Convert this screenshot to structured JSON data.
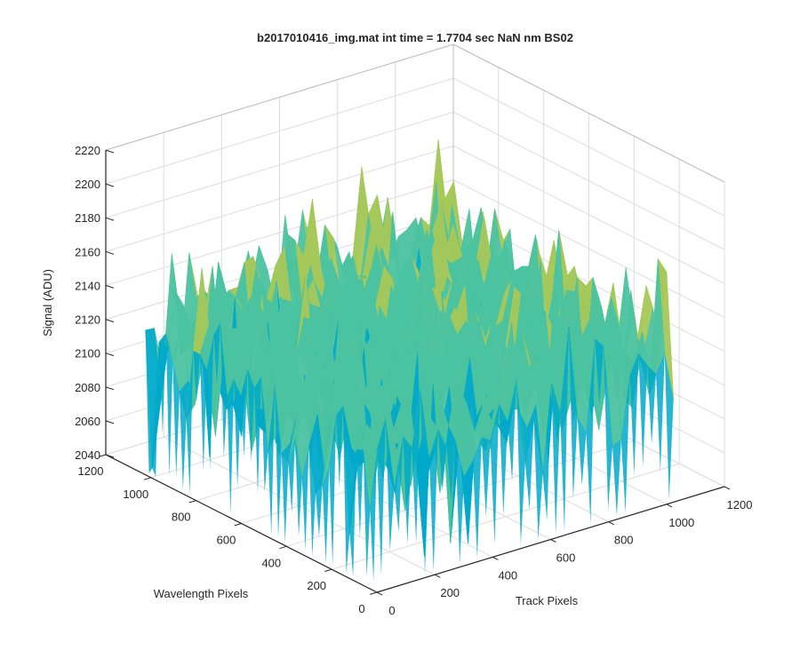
{
  "chart_data": {
    "type": "surface",
    "title": "b2017010416_img.mat int time = 1.7704 sec  NaN nm BS02",
    "xlabel": "Track Pixels",
    "ylabel": "Wavelength Pixels",
    "zlabel": "Signal (ADU)",
    "xlim": [
      0,
      1200
    ],
    "ylim": [
      0,
      1200
    ],
    "zlim": [
      2040,
      2220
    ],
    "x_ticks": [
      0,
      200,
      400,
      600,
      800,
      1000,
      1200
    ],
    "y_ticks": [
      0,
      200,
      400,
      600,
      800,
      1000,
      1200
    ],
    "z_ticks": [
      2040,
      2060,
      2080,
      2100,
      2120,
      2140,
      2160,
      2180,
      2200,
      2220
    ],
    "surface_extent": {
      "x": [
        0,
        1024
      ],
      "y": [
        0,
        1024
      ]
    },
    "signal_mean_approx": 2125,
    "signal_range_approx": [
      2050,
      2200
    ],
    "colormap": [
      "#0072bd",
      "#00a9c9",
      "#4cc3a0",
      "#a6c85a",
      "#e6bd3f"
    ],
    "grid": true
  }
}
